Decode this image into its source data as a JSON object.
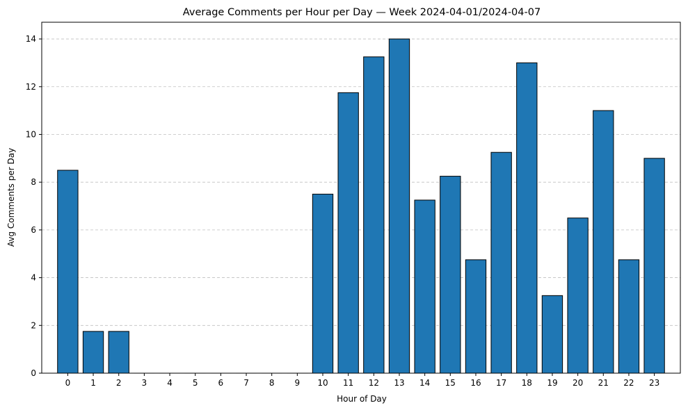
{
  "chart_data": {
    "type": "bar",
    "title": "Average Comments per Hour per Day — Week 2024-04-01/2024-04-07",
    "xlabel": "Hour of Day",
    "ylabel": "Avg Comments per Day",
    "categories": [
      "0",
      "1",
      "2",
      "3",
      "4",
      "5",
      "6",
      "7",
      "8",
      "9",
      "10",
      "11",
      "12",
      "13",
      "14",
      "15",
      "16",
      "17",
      "18",
      "19",
      "20",
      "21",
      "22",
      "23"
    ],
    "values": [
      8.5,
      1.75,
      1.75,
      0,
      0,
      0,
      0,
      0,
      0,
      0,
      7.5,
      11.75,
      13.25,
      14,
      7.25,
      8.25,
      4.75,
      9.25,
      13,
      3.25,
      6.5,
      11,
      4.75,
      9
    ],
    "ylim": [
      0,
      14.7
    ],
    "yticks": [
      0,
      2,
      4,
      6,
      8,
      10,
      12,
      14
    ],
    "grid": "y-dashed",
    "bar_color": "#1f77b4",
    "edge_color": "#000000",
    "grid_color": "#b0b0b0"
  }
}
